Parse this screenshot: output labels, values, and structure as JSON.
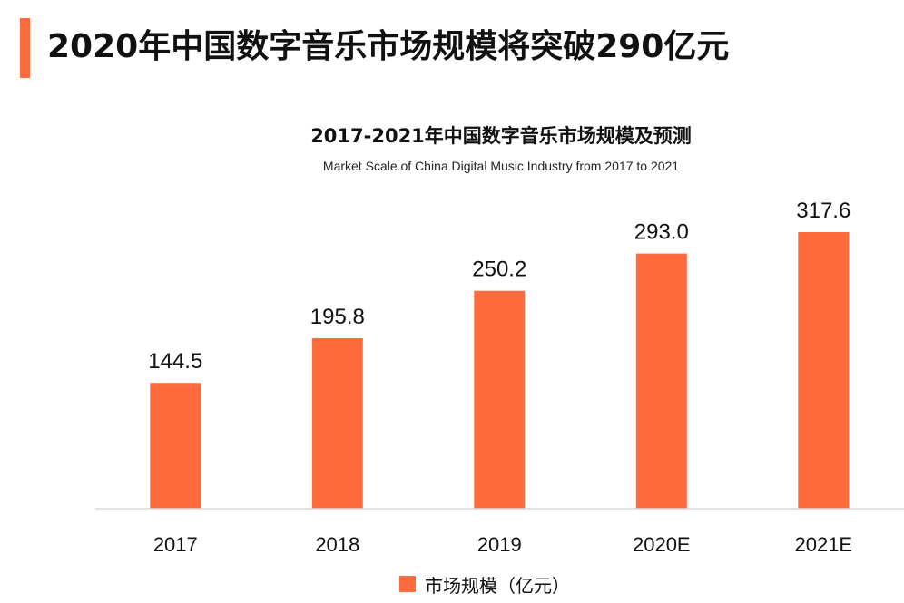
{
  "headline": "2020年中国数字音乐市场规模将突破290亿元",
  "colors": {
    "accent": "#ff6b3d",
    "axis": "#d9d9d9",
    "text": "#111111"
  },
  "chart_data": {
    "type": "bar",
    "title": "2017-2021年中国数字音乐市场规模及预测",
    "subtitle": "Market Scale of China Digital Music Industry from 2017 to 2021",
    "categories": [
      "2017",
      "2018",
      "2019",
      "2020E",
      "2021E"
    ],
    "series": [
      {
        "name": "市场规模（亿元）",
        "values": [
          144.5,
          195.8,
          250.2,
          293.0,
          317.6
        ],
        "labels": [
          "144.5",
          "195.8",
          "250.2",
          "293.0",
          "317.6"
        ]
      }
    ],
    "ylim": [
      0,
      317.6
    ],
    "grid": false,
    "legend": "bottom-center"
  }
}
